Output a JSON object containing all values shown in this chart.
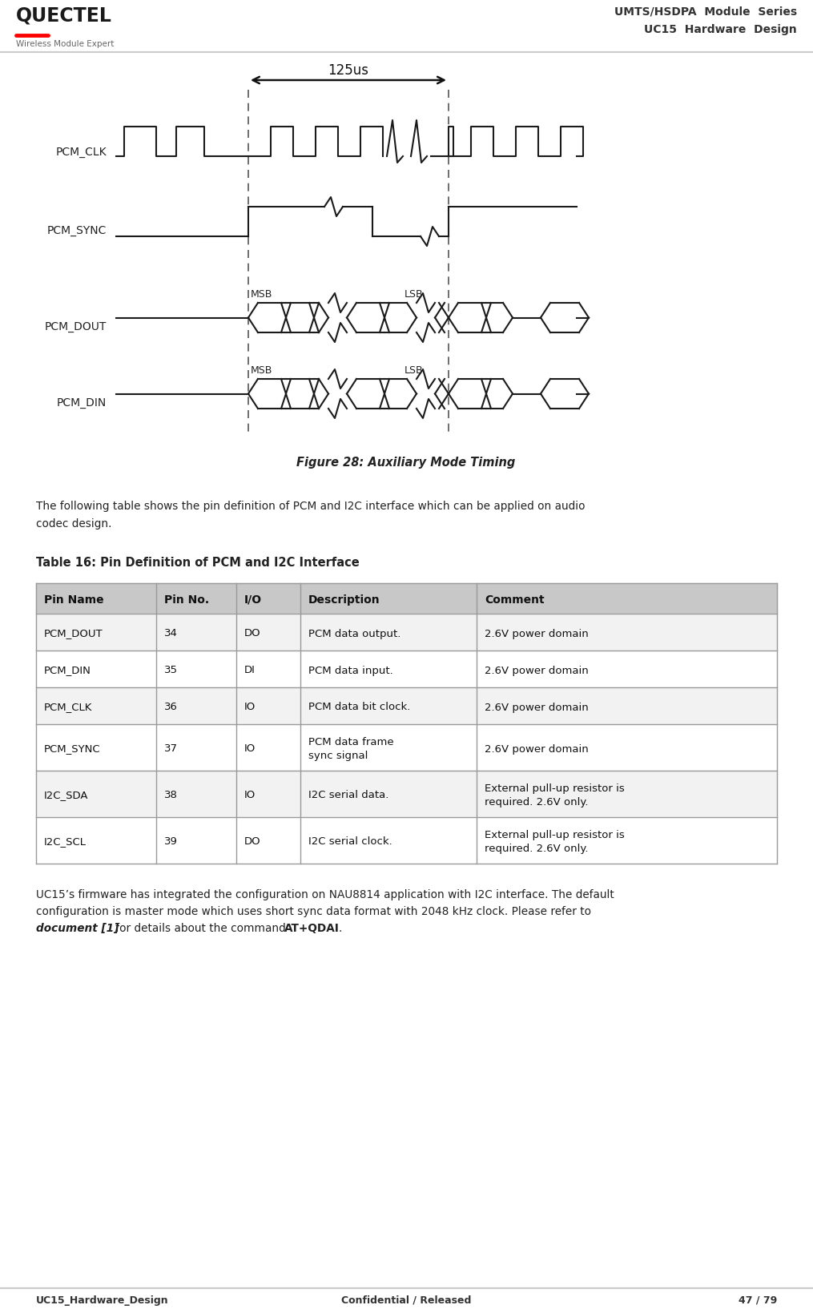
{
  "header_title1": "UMTS/HSDPA  Module  Series",
  "header_title2": "UC15  Hardware  Design",
  "header_subtitle": "Wireless Module Expert",
  "footer_left": "UC15_Hardware_Design",
  "footer_center": "Confidential / Released",
  "footer_right": "47 / 79",
  "figure_caption": "Figure 28: Auxiliary Mode Timing",
  "table_title": "Table 16: Pin Definition of PCM and I2C Interface",
  "table_headers": [
    "Pin Name",
    "Pin No.",
    "I/O",
    "Description",
    "Comment"
  ],
  "table_rows": [
    [
      "PCM_DOUT",
      "34",
      "DO",
      "PCM data output.",
      "2.6V power domain"
    ],
    [
      "PCM_DIN",
      "35",
      "DI",
      "PCM data input.",
      "2.6V power domain"
    ],
    [
      "PCM_CLK",
      "36",
      "IO",
      "PCM data bit clock.",
      "2.6V power domain"
    ],
    [
      "PCM_SYNC",
      "37",
      "IO",
      "PCM data frame\nsync signal",
      "2.6V power domain"
    ],
    [
      "I2C_SDA",
      "38",
      "IO",
      "I2C serial data.",
      "External pull-up resistor is\nrequired. 2.6V only."
    ],
    [
      "I2C_SCL",
      "39",
      "DO",
      "I2C serial clock.",
      "External pull-up resistor is\nrequired. 2.6V only."
    ]
  ],
  "bg_color": "#ffffff",
  "table_header_bg": "#c8c8c8",
  "waveform_color": "#1a1a1a",
  "text_color": "#222222",
  "header_text_color": "#333333",
  "table_line_color": "#999999",
  "dashed_line_color": "#555555",
  "arrow_color": "#111111",
  "separator_color": "#cccccc"
}
